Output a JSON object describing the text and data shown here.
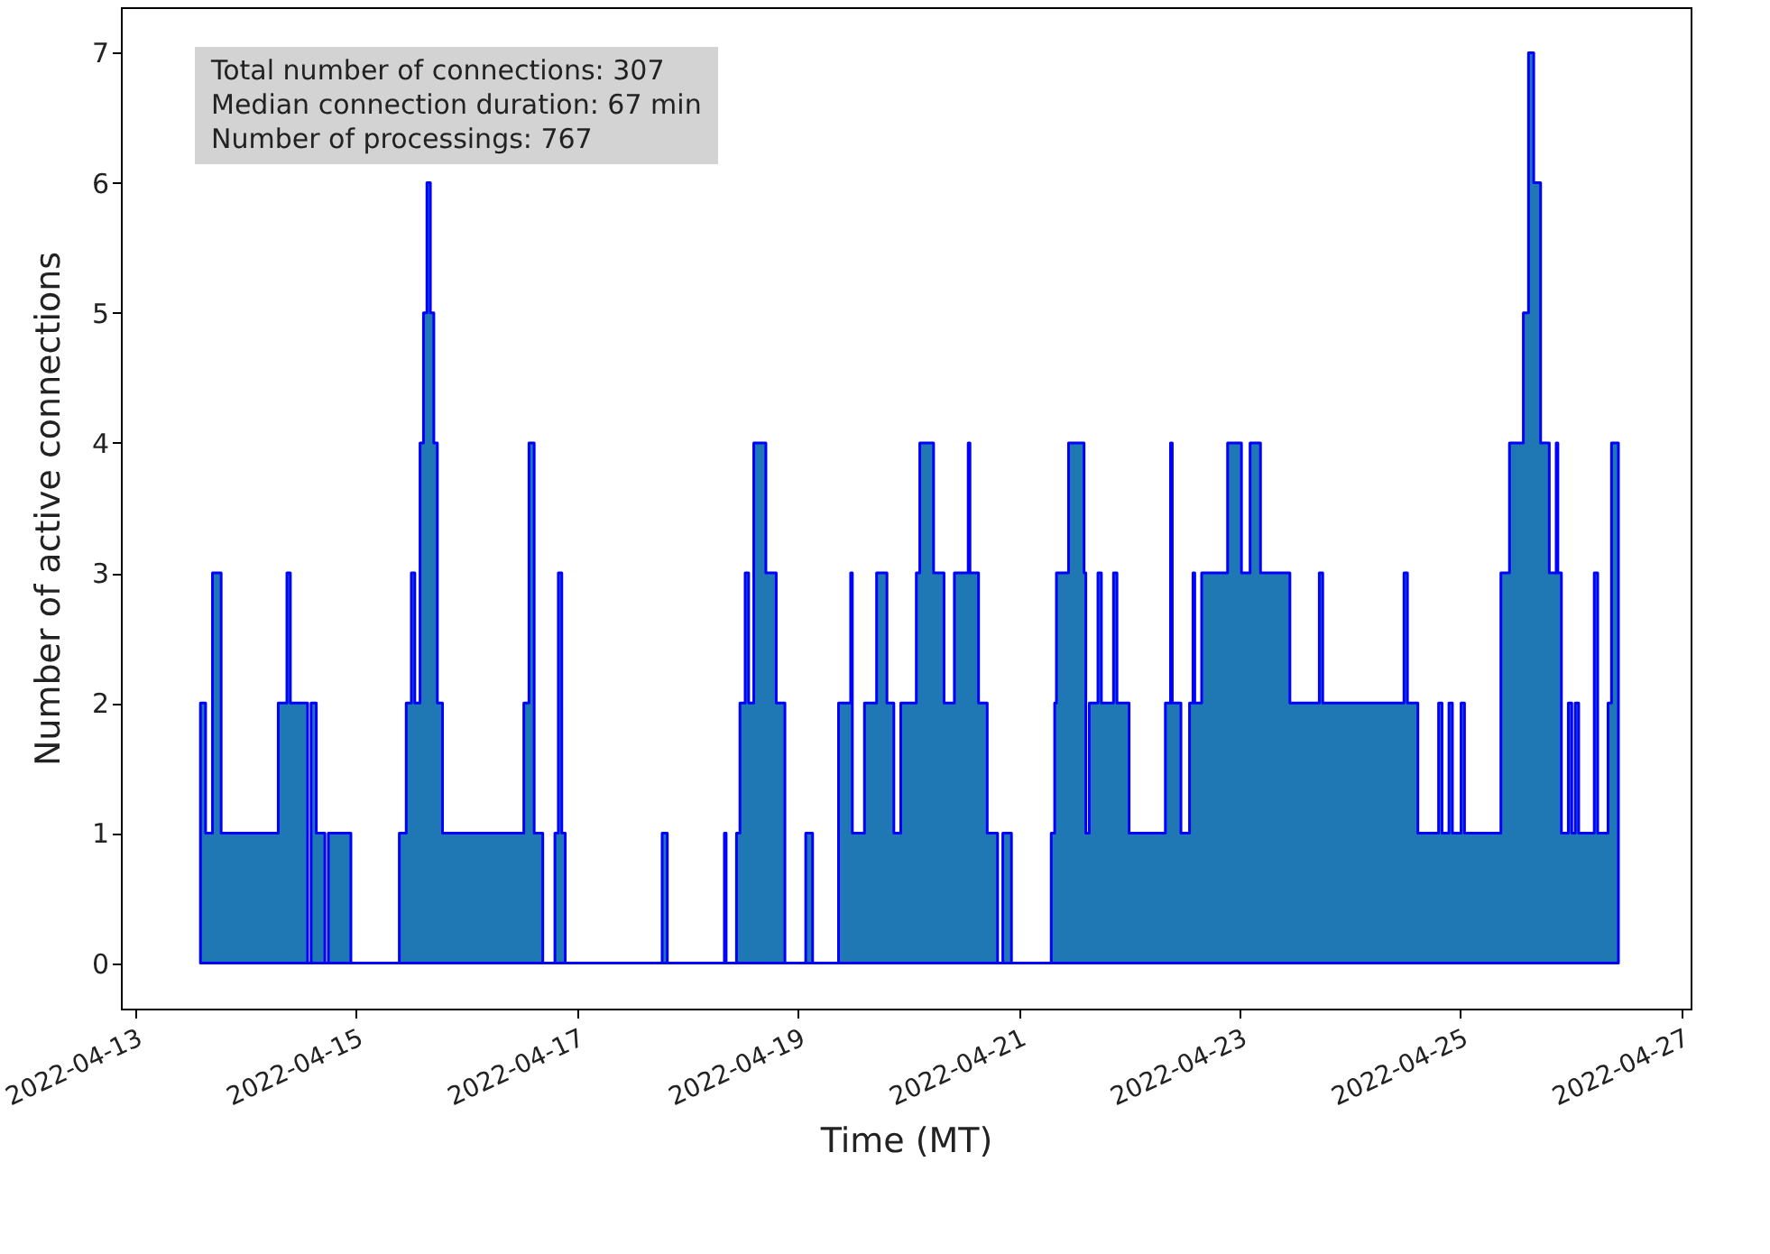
{
  "chart_data": {
    "type": "area",
    "xlabel": "Time (MT)",
    "ylabel": "Number of active connections",
    "annotations": [
      "Total number of connections: 307",
      "Median connection duration: 67 min",
      "Number of processings: 767"
    ],
    "xlim": [
      "2022-04-12T21:00",
      "2022-04-27T02:00"
    ],
    "xticks": [
      "2022-04-13",
      "2022-04-15",
      "2022-04-17",
      "2022-04-19",
      "2022-04-21",
      "2022-04-23",
      "2022-04-25",
      "2022-04-27"
    ],
    "ylim": [
      -0.35,
      7.35
    ],
    "yticks": [
      0,
      1,
      2,
      3,
      4,
      5,
      6,
      7
    ],
    "grid": false,
    "x": [
      "2022-04-13T14:17",
      "2022-04-13T15:24",
      "2022-04-13T16:54",
      "2022-04-13T18:47",
      "2022-04-14T07:11",
      "2022-04-14T09:04",
      "2022-04-14T09:49",
      "2022-04-14T13:34",
      "2022-04-14T14:19",
      "2022-04-14T15:27",
      "2022-04-14T17:19",
      "2022-04-14T18:04",
      "2022-04-14T22:58",
      "2022-04-15T09:29",
      "2022-04-15T10:59",
      "2022-04-15T12:06",
      "2022-04-15T12:51",
      "2022-04-15T13:59",
      "2022-04-15T14:44",
      "2022-04-15T15:29",
      "2022-04-15T16:14",
      "2022-04-15T16:59",
      "2022-04-15T17:45",
      "2022-04-15T18:52",
      "2022-04-16T12:32",
      "2022-04-16T13:39",
      "2022-04-16T14:47",
      "2022-04-16T16:39",
      "2022-04-16T19:17",
      "2022-04-16T20:02",
      "2022-04-16T20:47",
      "2022-04-16T21:32",
      "2022-04-17T18:35",
      "2022-04-17T19:42",
      "2022-04-18T08:06",
      "2022-04-18T08:29",
      "2022-04-18T10:44",
      "2022-04-18T11:29",
      "2022-04-18T12:37",
      "2022-04-18T13:22",
      "2022-04-18T14:29",
      "2022-04-18T17:07",
      "2022-04-18T19:22",
      "2022-04-18T21:15",
      "2022-04-19T01:46",
      "2022-04-19T03:16",
      "2022-04-19T08:54",
      "2022-04-19T11:32",
      "2022-04-19T11:54",
      "2022-04-19T14:32",
      "2022-04-19T17:10",
      "2022-04-19T19:25",
      "2022-04-19T20:55",
      "2022-04-19T22:25",
      "2022-04-20T01:48",
      "2022-04-20T02:33",
      "2022-04-20T05:33",
      "2022-04-20T07:49",
      "2022-04-20T10:04",
      "2022-04-20T13:04",
      "2022-04-20T13:27",
      "2022-04-20T15:19",
      "2022-04-20T17:12",
      "2022-04-20T19:27",
      "2022-04-20T20:35",
      "2022-04-20T22:28",
      "2022-04-21T07:06",
      "2022-04-21T07:51",
      "2022-04-21T08:14",
      "2022-04-21T10:52",
      "2022-04-21T14:14",
      "2022-04-21T14:37",
      "2022-04-21T15:22",
      "2022-04-21T17:15",
      "2022-04-21T18:00",
      "2022-04-21T20:38",
      "2022-04-21T21:23",
      "2022-04-22T00:01",
      "2022-04-22T07:54",
      "2022-04-22T09:01",
      "2022-04-22T09:24",
      "2022-04-22T11:17",
      "2022-04-22T13:09",
      "2022-04-22T13:54",
      "2022-04-22T14:17",
      "2022-04-22T15:47",
      "2022-04-22T21:25",
      "2022-04-23T00:26",
      "2022-04-23T02:18",
      "2022-04-23T04:34",
      "2022-04-23T10:57",
      "2022-04-23T17:20",
      "2022-04-23T18:05",
      "2022-04-24T11:44",
      "2022-04-24T12:29",
      "2022-04-24T14:45",
      "2022-04-24T19:15",
      "2022-04-24T20:00",
      "2022-04-24T21:30",
      "2022-04-24T22:15",
      "2022-04-25T00:08",
      "2022-04-25T00:53",
      "2022-04-25T08:47",
      "2022-04-25T10:39",
      "2022-04-25T13:40",
      "2022-04-25T14:47",
      "2022-04-25T15:55",
      "2022-04-25T17:25",
      "2022-04-25T19:18",
      "2022-04-25T20:48",
      "2022-04-25T21:10",
      "2022-04-25T21:56",
      "2022-04-25T23:26",
      "2022-04-26T00:11",
      "2022-04-26T00:56",
      "2022-04-26T01:41",
      "2022-04-26T05:04",
      "2022-04-26T05:49",
      "2022-04-26T08:04",
      "2022-04-26T08:49",
      "2022-04-26T10:19"
    ],
    "series": [
      {
        "color": "#1f77b4",
        "values": [
          2,
          1,
          3,
          1,
          2,
          3,
          2,
          0,
          2,
          1,
          0,
          1,
          0,
          1,
          2,
          3,
          2,
          4,
          5,
          6,
          5,
          4,
          2,
          1,
          2,
          4,
          1,
          0,
          1,
          3,
          1,
          0,
          1,
          0,
          1,
          0,
          1,
          2,
          3,
          2,
          4,
          3,
          2,
          0,
          1,
          0,
          2,
          3,
          1,
          2,
          3,
          2,
          1,
          2,
          3,
          4,
          3,
          2,
          3,
          4,
          3,
          2,
          1,
          0,
          1,
          0,
          1,
          2,
          3,
          4,
          3,
          1,
          2,
          3,
          2,
          3,
          2,
          1,
          2,
          4,
          2,
          1,
          2,
          3,
          2,
          3,
          4,
          3,
          4,
          3,
          2,
          3,
          2,
          3,
          2,
          1,
          2,
          1,
          2,
          1,
          2,
          1,
          3,
          4,
          5,
          7,
          6,
          4,
          3,
          4,
          3,
          1,
          2,
          1,
          2,
          1,
          3,
          1,
          2,
          4,
          0
        ]
      }
    ]
  }
}
